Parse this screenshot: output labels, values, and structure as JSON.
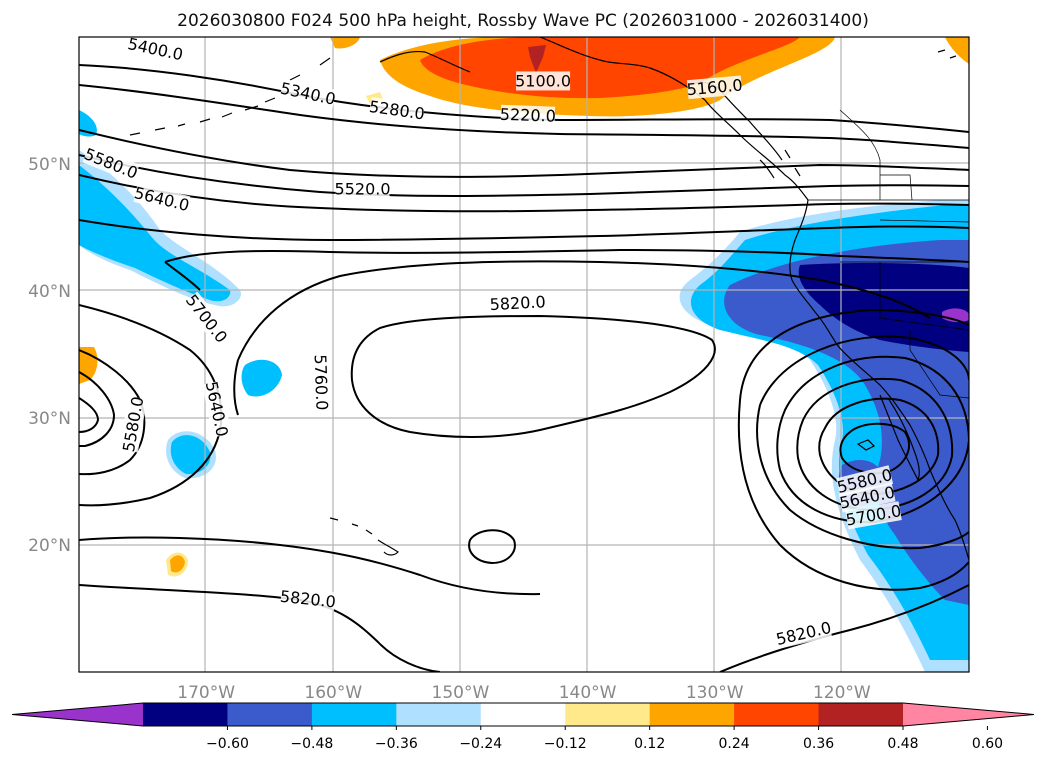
{
  "title": "2026030800 F024 500 hPa height, Rossby Wave PC (2026031000 - 2026031400)",
  "map": {
    "projection": "plate-carree",
    "lon_range": [
      -180,
      -110
    ],
    "lat_range": [
      10,
      60
    ],
    "gridlines": true,
    "lat_labels": [
      {
        "lat": 50,
        "label": "50°N"
      },
      {
        "lat": 40,
        "label": "40°N"
      },
      {
        "lat": 30,
        "label": "30°N"
      },
      {
        "lat": 20,
        "label": "20°N"
      }
    ],
    "lon_labels": [
      {
        "lon": -170,
        "label": "170°W"
      },
      {
        "lon": -160,
        "label": "160°W"
      },
      {
        "lon": -150,
        "label": "150°W"
      },
      {
        "lon": -140,
        "label": "140°W"
      },
      {
        "lon": -130,
        "label": "130°W"
      },
      {
        "lon": -120,
        "label": "120°W"
      }
    ]
  },
  "contour_labels": [
    {
      "text": "5400.0",
      "lon": -174.0,
      "lat": 59.0,
      "rot": 12
    },
    {
      "text": "5340.0",
      "lon": -162.0,
      "lat": 55.5,
      "rot": 12
    },
    {
      "text": "5280.0",
      "lon": -155.0,
      "lat": 54.2,
      "rot": 8
    },
    {
      "text": "5220.0",
      "lon": -144.7,
      "lat": 53.8,
      "rot": 2
    },
    {
      "text": "5100.0",
      "lon": -143.5,
      "lat": 56.5,
      "rot": 0
    },
    {
      "text": "5160.0",
      "lon": -130.0,
      "lat": 56.0,
      "rot": -5
    },
    {
      "text": "5580.0",
      "lon": -177.5,
      "lat": 50.0,
      "rot": 22
    },
    {
      "text": "5640.0",
      "lon": -173.5,
      "lat": 47.2,
      "rot": 14
    },
    {
      "text": "5520.0",
      "lon": -157.7,
      "lat": 48.0,
      "rot": 0
    },
    {
      "text": "5820.0",
      "lon": -145.5,
      "lat": 39.0,
      "rot": -3
    },
    {
      "text": "5700.0",
      "lon": -170.0,
      "lat": 37.8,
      "rot": 52
    },
    {
      "text": "5760.0",
      "lon": -161.0,
      "lat": 32.8,
      "rot": 88
    },
    {
      "text": "5640.0",
      "lon": -169.2,
      "lat": 30.7,
      "rot": 78
    },
    {
      "text": "5580.0",
      "lon": -175.7,
      "lat": 29.5,
      "rot": -80
    },
    {
      "text": "5820.0",
      "lon": -162.0,
      "lat": 15.7,
      "rot": 6
    },
    {
      "text": "5820.0",
      "lon": -123.0,
      "lat": 13.0,
      "rot": -13
    },
    {
      "text": "5580.0",
      "lon": -118.2,
      "lat": 25.0,
      "rot": -14
    },
    {
      "text": "5640.0",
      "lon": -118.0,
      "lat": 23.7,
      "rot": -12
    },
    {
      "text": "5700.0",
      "lon": -117.5,
      "lat": 22.3,
      "rot": -10
    }
  ],
  "colorbar": {
    "colors": [
      "#9933cc",
      "#000080",
      "#3b5bcc",
      "#00bfff",
      "#b0e0ff",
      "#ffffff",
      "#ffe98a",
      "#ffa500",
      "#ff4500",
      "#b22222",
      "#ff85a2"
    ],
    "ticks": [
      "−0.60",
      "−0.48",
      "−0.36",
      "−0.24",
      "−0.12",
      "0.12",
      "0.24",
      "0.36",
      "0.48",
      "0.60"
    ]
  },
  "shade_colors": {
    "purple": "#9933cc",
    "navy": "#000080",
    "royal": "#3b5bcc",
    "sky": "#00bfff",
    "pale_blue": "#b0e0ff",
    "pale_yellow": "#ffe98a",
    "orange": "#ffa500",
    "red_orange": "#ff4500",
    "dark_red": "#b22222"
  }
}
